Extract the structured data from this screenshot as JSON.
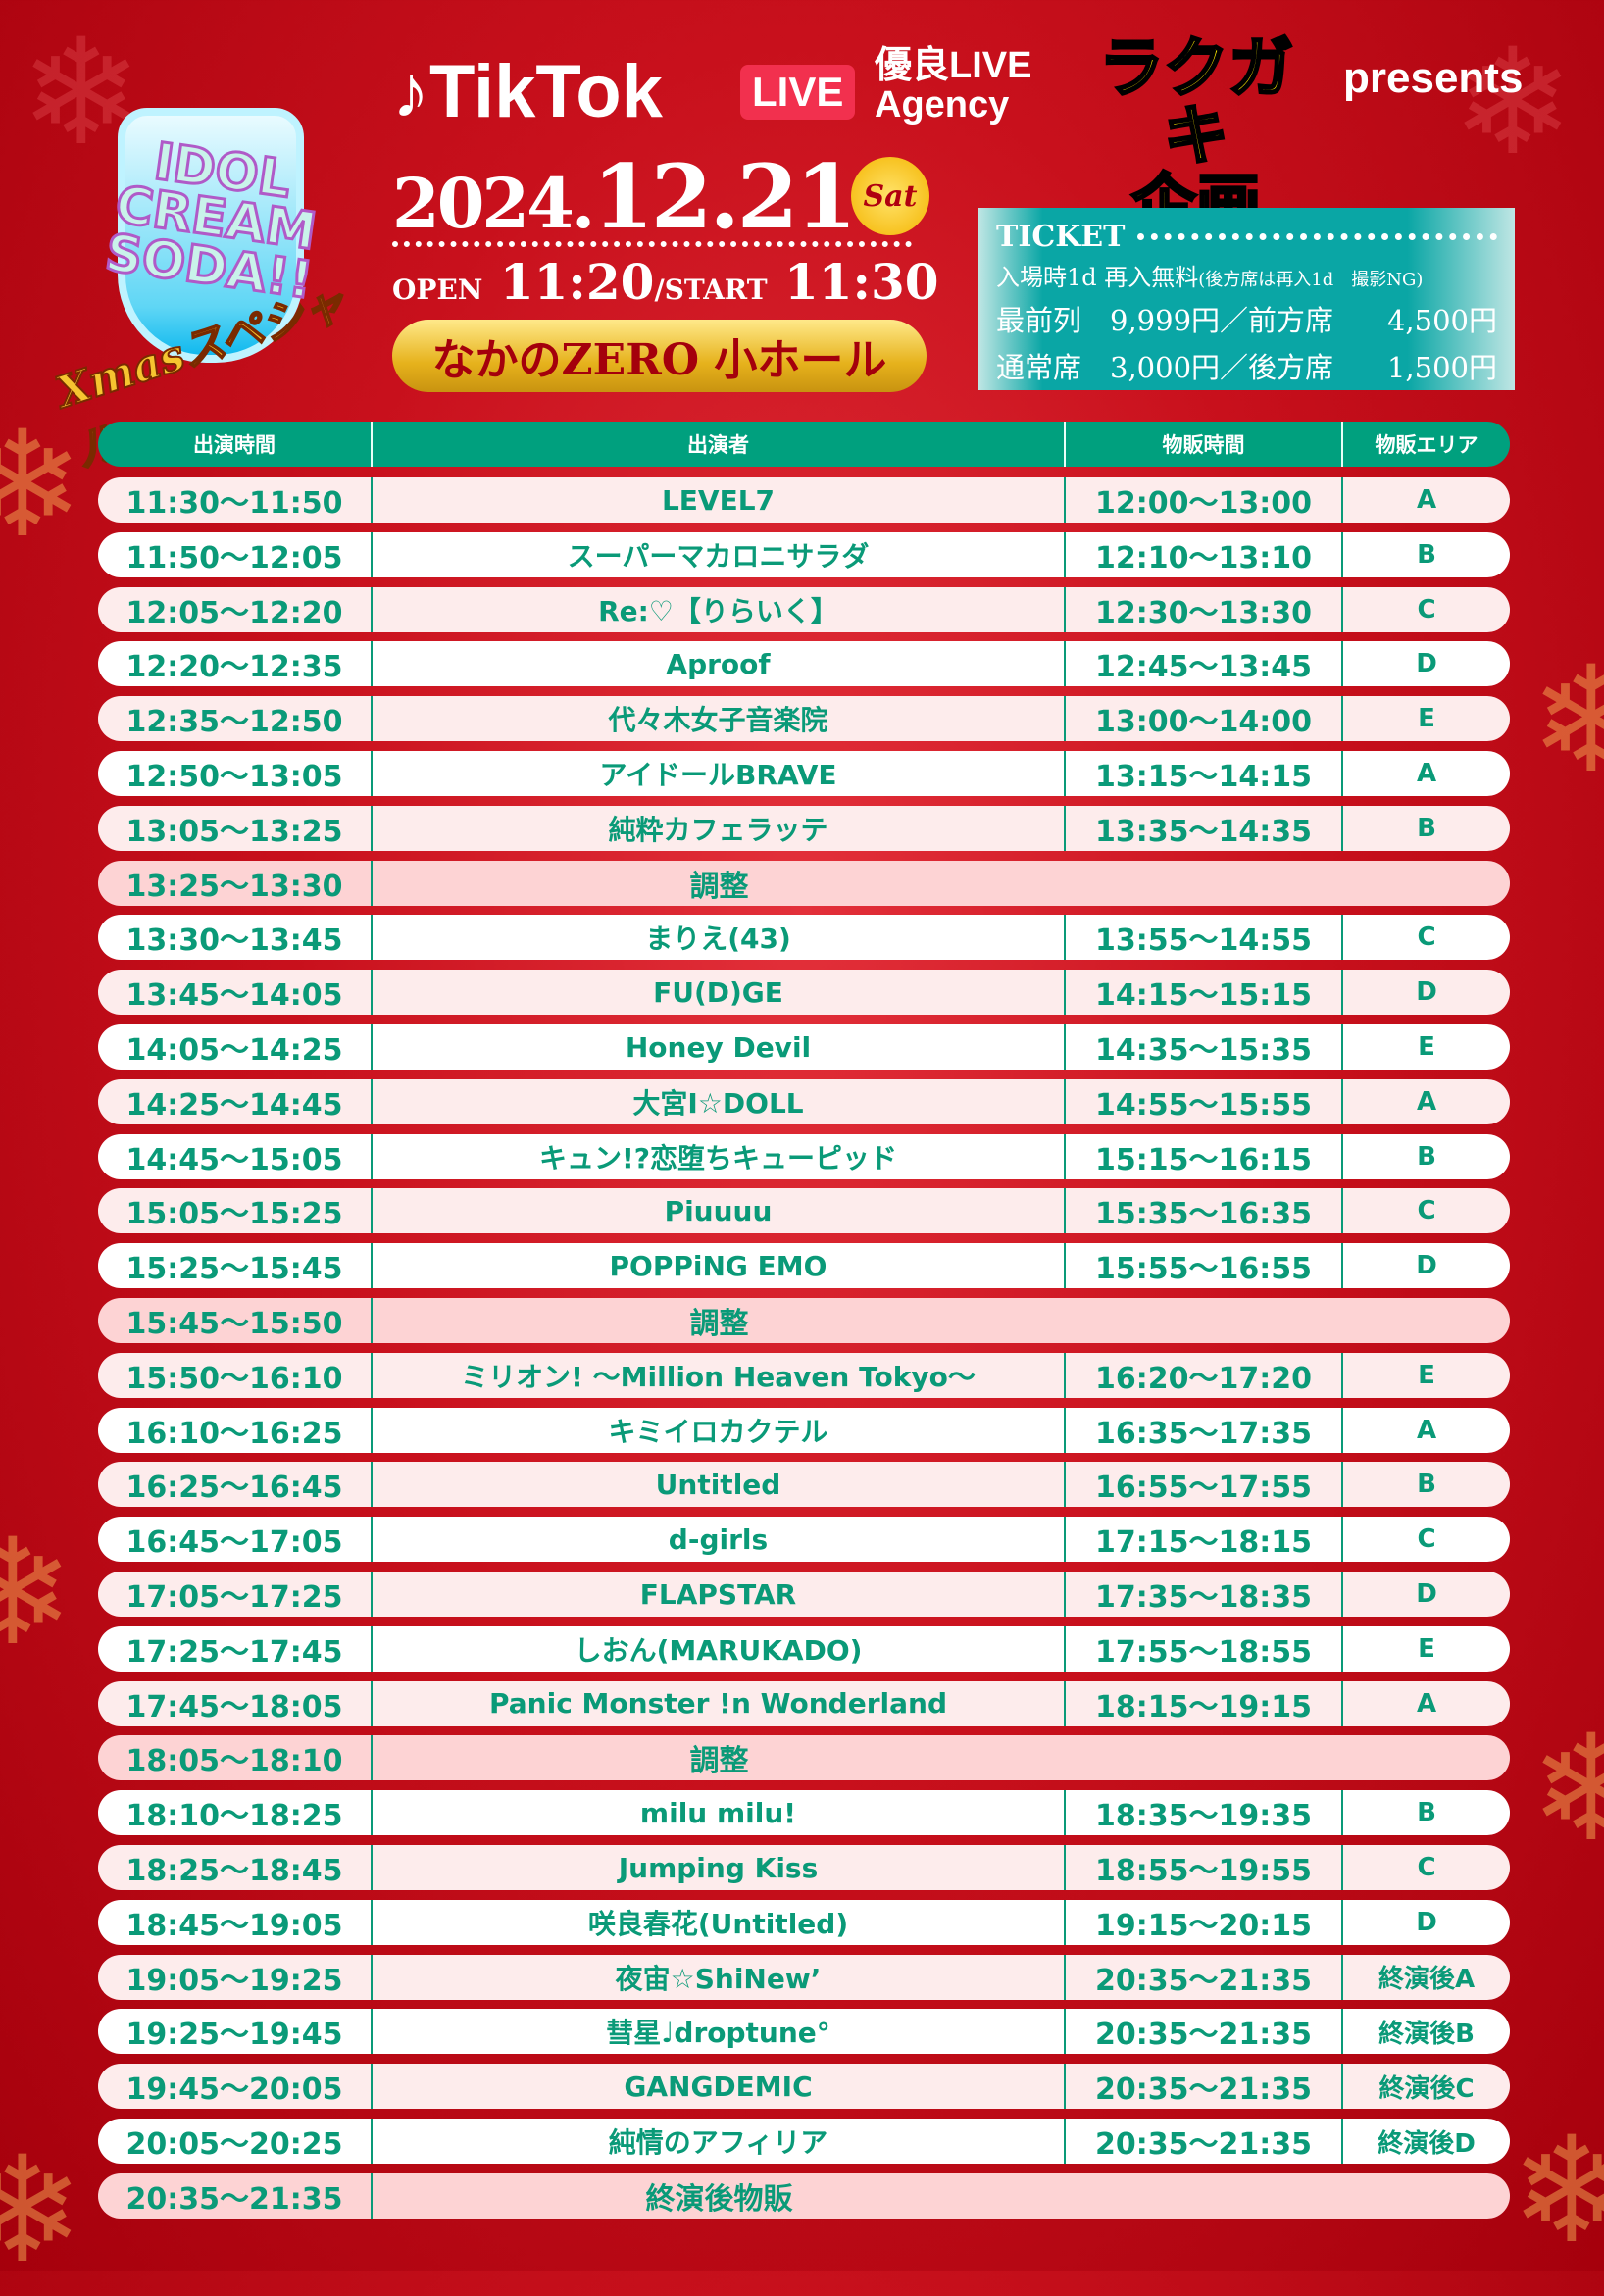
{
  "header": {
    "logo_text": "IDOL CREAM SODA!!",
    "logo_subtitle": "Xmasスペシャル",
    "tiktok": "TikTok",
    "live_badge": "LIVE",
    "agency_line1": "優良LIVE",
    "agency_line2": "Agency",
    "rakugaki_line1": "ラクガキ",
    "rakugaki_line2": "企画",
    "presents": "presents",
    "date_year": "2024.",
    "date_md": "12.21",
    "weekday": "Sat",
    "open_label": "OPEN",
    "open_time": "11:20",
    "start_label": "/START",
    "start_time": "11:30",
    "venue": "なかのZERO 小ホール"
  },
  "ticket": {
    "title": "TICKET",
    "note_main": "入場時1d 再入無料",
    "note_sub": "(後方席は再入1d　撮影NG)",
    "row1_a": "最前列　9,999円／前方席",
    "row1_b": "4,500円",
    "row2_a": "通常席　3,000円／後方席",
    "row2_b": "1,500円"
  },
  "table": {
    "headers": [
      "出演時間",
      "出演者",
      "物販時間",
      "物販エリア"
    ],
    "rows": [
      {
        "time": "11:30〜11:50",
        "name": "LEVEL7",
        "goods": "12:00〜13:00",
        "area": "A"
      },
      {
        "time": "11:50〜12:05",
        "name": "スーパーマカロニサラダ",
        "goods": "12:10〜13:10",
        "area": "B"
      },
      {
        "time": "12:05〜12:20",
        "name": "Re:♡【りらいく】",
        "goods": "12:30〜13:30",
        "area": "C"
      },
      {
        "time": "12:20〜12:35",
        "name": "Aproof",
        "goods": "12:45〜13:45",
        "area": "D"
      },
      {
        "time": "12:35〜12:50",
        "name": "代々木女子音楽院",
        "goods": "13:00〜14:00",
        "area": "E"
      },
      {
        "time": "12:50〜13:05",
        "name": "アイドールBRAVE",
        "goods": "13:15〜14:15",
        "area": "A"
      },
      {
        "time": "13:05〜13:25",
        "name": "純粋カフェラッテ",
        "goods": "13:35〜14:35",
        "area": "B"
      },
      {
        "time": "13:25〜13:30",
        "name": "調整",
        "special": true
      },
      {
        "time": "13:30〜13:45",
        "name": "まりえ(43)",
        "goods": "13:55〜14:55",
        "area": "C"
      },
      {
        "time": "13:45〜14:05",
        "name": "FU(D)GE",
        "goods": "14:15〜15:15",
        "area": "D"
      },
      {
        "time": "14:05〜14:25",
        "name": "Honey Devil",
        "goods": "14:35〜15:35",
        "area": "E"
      },
      {
        "time": "14:25〜14:45",
        "name": "大宮I☆DOLL",
        "goods": "14:55〜15:55",
        "area": "A"
      },
      {
        "time": "14:45〜15:05",
        "name": "キュン!?恋堕ちキューピッド",
        "goods": "15:15〜16:15",
        "area": "B"
      },
      {
        "time": "15:05〜15:25",
        "name": "Piuuuu",
        "goods": "15:35〜16:35",
        "area": "C"
      },
      {
        "time": "15:25〜15:45",
        "name": "POPPiNG EMO",
        "goods": "15:55〜16:55",
        "area": "D"
      },
      {
        "time": "15:45〜15:50",
        "name": "調整",
        "special": true
      },
      {
        "time": "15:50〜16:10",
        "name": "ミリオン! 〜Million Heaven Tokyo〜",
        "goods": "16:20〜17:20",
        "area": "E"
      },
      {
        "time": "16:10〜16:25",
        "name": "キミイロカクテル",
        "goods": "16:35〜17:35",
        "area": "A"
      },
      {
        "time": "16:25〜16:45",
        "name": "Untitled",
        "goods": "16:55〜17:55",
        "area": "B"
      },
      {
        "time": "16:45〜17:05",
        "name": "d-girls",
        "goods": "17:15〜18:15",
        "area": "C"
      },
      {
        "time": "17:05〜17:25",
        "name": "FLAPSTAR",
        "goods": "17:35〜18:35",
        "area": "D"
      },
      {
        "time": "17:25〜17:45",
        "name": "しおん(MARUKADO)",
        "goods": "17:55〜18:55",
        "area": "E"
      },
      {
        "time": "17:45〜18:05",
        "name": "Panic Monster !n Wonderland",
        "goods": "18:15〜19:15",
        "area": "A"
      },
      {
        "time": "18:05〜18:10",
        "name": "調整",
        "special": true
      },
      {
        "time": "18:10〜18:25",
        "name": "milu milu!",
        "goods": "18:35〜19:35",
        "area": "B"
      },
      {
        "time": "18:25〜18:45",
        "name": "Jumping Kiss",
        "goods": "18:55〜19:55",
        "area": "C"
      },
      {
        "time": "18:45〜19:05",
        "name": "咲良春花(Untitled)",
        "goods": "19:15〜20:15",
        "area": "D"
      },
      {
        "time": "19:05〜19:25",
        "name": "夜宙☆ShiNew’",
        "goods": "20:35〜21:35",
        "area": "終演後A"
      },
      {
        "time": "19:25〜19:45",
        "name": "彗星♩droptune°",
        "goods": "20:35〜21:35",
        "area": "終演後B"
      },
      {
        "time": "19:45〜20:05",
        "name": "GANGDEMIC",
        "goods": "20:35〜21:35",
        "area": "終演後C"
      },
      {
        "time": "20:05〜20:25",
        "name": "純情のアフィリア",
        "goods": "20:35〜21:35",
        "area": "終演後D"
      },
      {
        "time": "20:35〜21:35",
        "name": "終演後物販",
        "special": true
      }
    ]
  },
  "colors": {
    "header_green": "#00a07e",
    "text_green": "#0a9a78",
    "row_pink": "#fdecec",
    "row_special": "#fdd3d4",
    "background_red": "#c8101c",
    "ticket_teal": "#0aa6a5"
  }
}
